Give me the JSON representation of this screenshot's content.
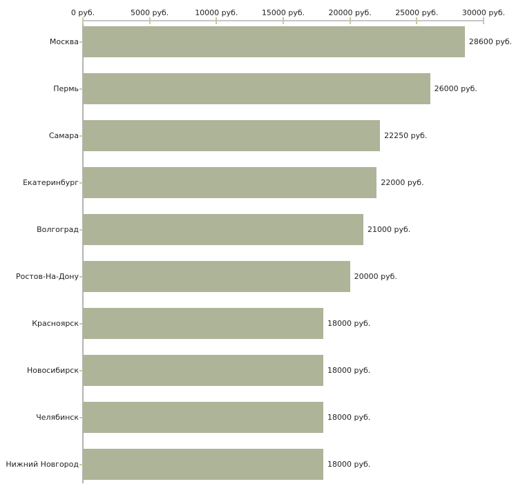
{
  "chart_data": {
    "type": "bar",
    "orientation": "horizontal",
    "title": "",
    "xlabel": "",
    "ylabel": "",
    "unit": "руб.",
    "categories": [
      "Москва",
      "Пермь",
      "Самара",
      "Екатеринбург",
      "Волгоград",
      "Ростов-На-Дону",
      "Красноярск",
      "Новосибирск",
      "Челябинск",
      "Нижний Новгород"
    ],
    "values": [
      28600,
      26000,
      22250,
      22000,
      21000,
      20000,
      18000,
      18000,
      18000,
      18000
    ],
    "value_labels": [
      "28600 руб.",
      "26000 руб.",
      "22250 руб.",
      "22000 руб.",
      "21000 руб.",
      "20000 руб.",
      "18000 руб.",
      "18000 руб.",
      "18000 руб.",
      "18000 руб."
    ],
    "x_ticks": [
      0,
      5000,
      10000,
      15000,
      20000,
      25000,
      30000
    ],
    "x_tick_labels": [
      "0 руб.",
      "5000 руб.",
      "10000 руб.",
      "15000 руб.",
      "20000 руб.",
      "25000 руб.",
      "30000 руб."
    ],
    "xlim": [
      0,
      30000
    ],
    "grid": false,
    "legend": null,
    "colors": {
      "bar": "#adb498",
      "h_axis_line": "#c6c6c6",
      "v_axis_line": "#b3b3b3",
      "tick": "#c9c9a0",
      "text": "#1f1f1f",
      "background": "#ffffff"
    }
  }
}
